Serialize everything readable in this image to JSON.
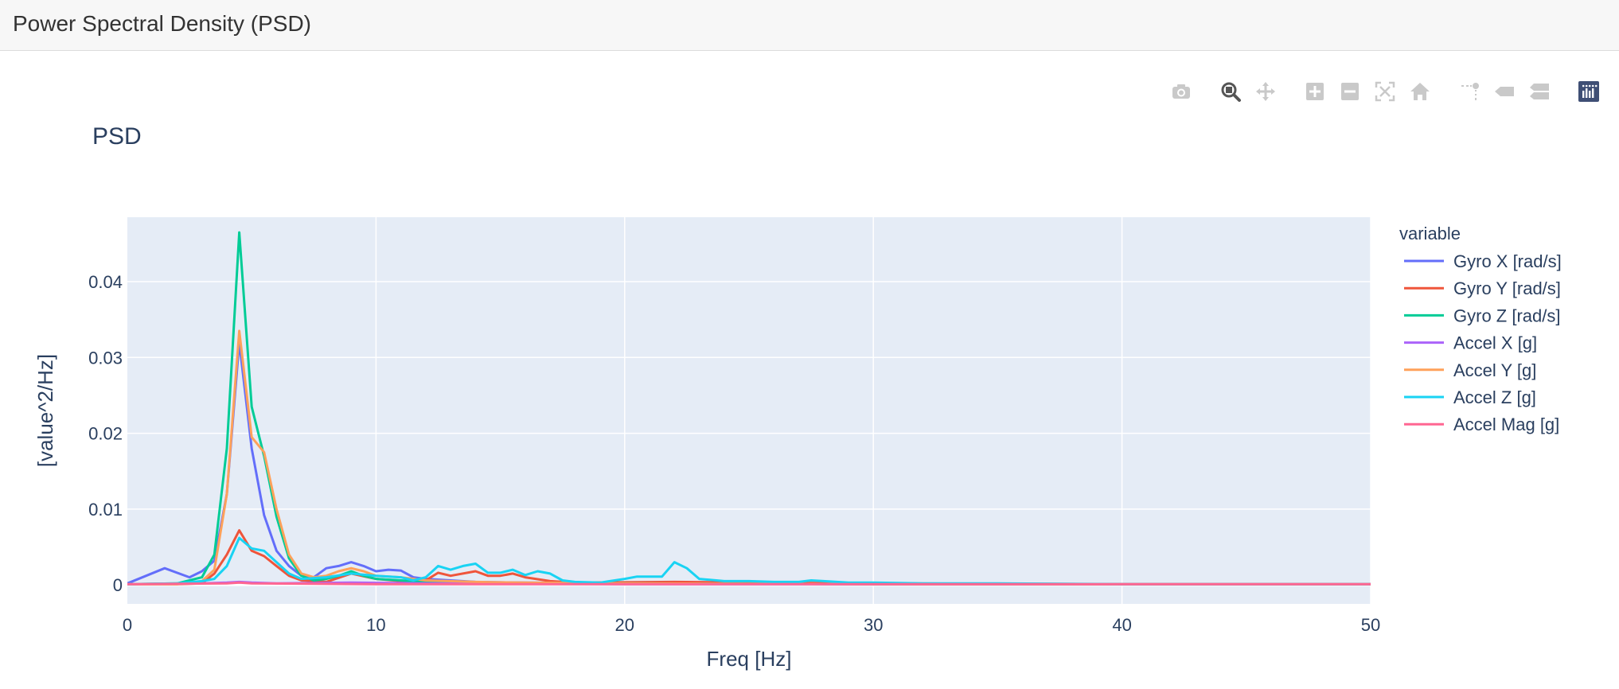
{
  "app": {
    "title": "Power Spectral Density (PSD)"
  },
  "modebar": {
    "buttons": [
      {
        "name": "camera-icon",
        "active": false
      },
      {
        "name": "zoom-icon",
        "active": true
      },
      {
        "name": "pan-icon",
        "active": false
      },
      {
        "name": "zoom-in-icon",
        "active": false
      },
      {
        "name": "zoom-out-icon",
        "active": false
      },
      {
        "name": "autoscale-icon",
        "active": false
      },
      {
        "name": "home-icon",
        "active": false
      },
      {
        "name": "spike-lines-icon",
        "active": false
      },
      {
        "name": "hover-closest-icon",
        "active": false
      },
      {
        "name": "hover-compare-icon",
        "active": false
      },
      {
        "name": "plotly-logo-icon",
        "active": false
      }
    ],
    "colors": {
      "inactive": "#c9c9c9",
      "active": "#555555",
      "logo": "#3f4f75"
    }
  },
  "chart_data": {
    "type": "line",
    "title": "PSD",
    "xlabel": "Freq [Hz]",
    "ylabel": "[value^2/Hz]",
    "xlim": [
      0,
      50
    ],
    "ylim": [
      -0.0025,
      0.0485
    ],
    "xticks": [
      0,
      10,
      20,
      30,
      40,
      50
    ],
    "xtick_labels": [
      "0",
      "10",
      "20",
      "30",
      "40",
      "50"
    ],
    "yticks": [
      0,
      0.01,
      0.02,
      0.03,
      0.04
    ],
    "ytick_labels": [
      "0",
      "0.01",
      "0.02",
      "0.03",
      "0.04"
    ],
    "grid": true,
    "legend_title": "variable",
    "legend_position": "right",
    "series": [
      {
        "name": "Gyro X [rad/s]",
        "color": "#636efa",
        "points": [
          [
            0,
            0.0002
          ],
          [
            1.5,
            0.0022
          ],
          [
            2.5,
            0.001
          ],
          [
            3.0,
            0.0018
          ],
          [
            3.5,
            0.0032
          ],
          [
            4.0,
            0.012
          ],
          [
            4.5,
            0.032
          ],
          [
            5.0,
            0.018
          ],
          [
            5.5,
            0.0092
          ],
          [
            6.0,
            0.0045
          ],
          [
            6.5,
            0.0025
          ],
          [
            7.0,
            0.0012
          ],
          [
            7.5,
            0.001
          ],
          [
            8.0,
            0.0022
          ],
          [
            8.5,
            0.0025
          ],
          [
            9.0,
            0.003
          ],
          [
            9.5,
            0.0025
          ],
          [
            10.0,
            0.0018
          ],
          [
            10.5,
            0.002
          ],
          [
            11.0,
            0.0019
          ],
          [
            11.5,
            0.001
          ],
          [
            12.0,
            0.0008
          ],
          [
            13.0,
            0.0006
          ],
          [
            14.0,
            0.0004
          ],
          [
            16.0,
            0.0003
          ],
          [
            20.0,
            0.0002
          ],
          [
            30.0,
            0.0001
          ],
          [
            40.0,
            0.0001
          ],
          [
            50.0,
            0.0001
          ]
        ]
      },
      {
        "name": "Gyro Y [rad/s]",
        "color": "#ef553b",
        "points": [
          [
            0,
            0.0001
          ],
          [
            2.0,
            0.0001
          ],
          [
            3.0,
            0.0002
          ],
          [
            3.5,
            0.0015
          ],
          [
            4.0,
            0.004
          ],
          [
            4.5,
            0.0072
          ],
          [
            5.0,
            0.0045
          ],
          [
            5.5,
            0.0038
          ],
          [
            6.0,
            0.0025
          ],
          [
            6.5,
            0.0012
          ],
          [
            7.0,
            0.0006
          ],
          [
            8.0,
            0.0004
          ],
          [
            9.0,
            0.0015
          ],
          [
            10.0,
            0.0008
          ],
          [
            11.0,
            0.0005
          ],
          [
            12.0,
            0.0006
          ],
          [
            12.5,
            0.0016
          ],
          [
            13.0,
            0.0012
          ],
          [
            14.0,
            0.0018
          ],
          [
            14.5,
            0.0012
          ],
          [
            15.0,
            0.0012
          ],
          [
            15.5,
            0.0015
          ],
          [
            16.0,
            0.001
          ],
          [
            17.0,
            0.0005
          ],
          [
            18.0,
            0.0003
          ],
          [
            22.0,
            0.0004
          ],
          [
            30.0,
            0.0002
          ],
          [
            40.0,
            0.0001
          ],
          [
            50.0,
            0.0001
          ]
        ]
      },
      {
        "name": "Gyro Z [rad/s]",
        "color": "#00cc96",
        "points": [
          [
            0,
            0.0001
          ],
          [
            2.0,
            0.0002
          ],
          [
            3.0,
            0.001
          ],
          [
            3.5,
            0.004
          ],
          [
            4.0,
            0.018
          ],
          [
            4.5,
            0.0465
          ],
          [
            5.0,
            0.0235
          ],
          [
            5.5,
            0.017
          ],
          [
            6.0,
            0.009
          ],
          [
            6.5,
            0.0035
          ],
          [
            7.0,
            0.0012
          ],
          [
            7.5,
            0.0006
          ],
          [
            8.0,
            0.0008
          ],
          [
            8.5,
            0.0012
          ],
          [
            9.0,
            0.0018
          ],
          [
            9.5,
            0.0012
          ],
          [
            10.0,
            0.0008
          ],
          [
            11.0,
            0.0006
          ],
          [
            12.0,
            0.0004
          ],
          [
            14.0,
            0.0003
          ],
          [
            20.0,
            0.0002
          ],
          [
            30.0,
            0.0001
          ],
          [
            50.0,
            0.0001
          ]
        ]
      },
      {
        "name": "Accel X [g]",
        "color": "#ab63fa",
        "points": [
          [
            0,
            0.0001
          ],
          [
            3.0,
            0.0002
          ],
          [
            4.0,
            0.0003
          ],
          [
            4.5,
            0.0004
          ],
          [
            5.0,
            0.0003
          ],
          [
            6.0,
            0.0002
          ],
          [
            9.0,
            0.0003
          ],
          [
            12.0,
            0.0002
          ],
          [
            20.0,
            0.0001
          ],
          [
            50.0,
            0.0001
          ]
        ]
      },
      {
        "name": "Accel Y [g]",
        "color": "#ffa15a",
        "points": [
          [
            0,
            0.0001
          ],
          [
            2.0,
            0.0001
          ],
          [
            3.0,
            0.0005
          ],
          [
            3.5,
            0.002
          ],
          [
            4.0,
            0.012
          ],
          [
            4.5,
            0.0335
          ],
          [
            5.0,
            0.0195
          ],
          [
            5.5,
            0.0175
          ],
          [
            6.0,
            0.01
          ],
          [
            6.5,
            0.004
          ],
          [
            7.0,
            0.0015
          ],
          [
            7.5,
            0.001
          ],
          [
            8.0,
            0.0012
          ],
          [
            8.5,
            0.0018
          ],
          [
            9.0,
            0.0022
          ],
          [
            9.5,
            0.0018
          ],
          [
            10.0,
            0.0012
          ],
          [
            11.0,
            0.001
          ],
          [
            12.0,
            0.0006
          ],
          [
            14.0,
            0.0004
          ],
          [
            16.0,
            0.0003
          ],
          [
            20.0,
            0.0002
          ],
          [
            30.0,
            0.0001
          ],
          [
            50.0,
            0.0001
          ]
        ]
      },
      {
        "name": "Accel Z [g]",
        "color": "#19d3f3",
        "points": [
          [
            0,
            0.0001
          ],
          [
            2.0,
            0.0002
          ],
          [
            3.0,
            0.0005
          ],
          [
            3.5,
            0.0008
          ],
          [
            4.0,
            0.0025
          ],
          [
            4.5,
            0.0062
          ],
          [
            5.0,
            0.0048
          ],
          [
            5.5,
            0.0045
          ],
          [
            6.0,
            0.003
          ],
          [
            6.5,
            0.0015
          ],
          [
            7.0,
            0.0008
          ],
          [
            8.0,
            0.001
          ],
          [
            9.0,
            0.0015
          ],
          [
            10.0,
            0.0012
          ],
          [
            11.0,
            0.001
          ],
          [
            11.5,
            0.0006
          ],
          [
            12.0,
            0.001
          ],
          [
            12.5,
            0.0025
          ],
          [
            13.0,
            0.002
          ],
          [
            13.5,
            0.0025
          ],
          [
            14.0,
            0.0028
          ],
          [
            14.5,
            0.0016
          ],
          [
            15.0,
            0.0016
          ],
          [
            15.5,
            0.002
          ],
          [
            16.0,
            0.0013
          ],
          [
            16.5,
            0.0018
          ],
          [
            17.0,
            0.0015
          ],
          [
            17.5,
            0.0006
          ],
          [
            18.0,
            0.0004
          ],
          [
            19.0,
            0.0003
          ],
          [
            20.0,
            0.0008
          ],
          [
            20.5,
            0.0011
          ],
          [
            21.5,
            0.0011
          ],
          [
            22.0,
            0.003
          ],
          [
            22.5,
            0.0022
          ],
          [
            23.0,
            0.0008
          ],
          [
            24.0,
            0.0005
          ],
          [
            25.0,
            0.0005
          ],
          [
            26.0,
            0.0004
          ],
          [
            27.0,
            0.0004
          ],
          [
            27.5,
            0.0006
          ],
          [
            28.0,
            0.0005
          ],
          [
            29.0,
            0.0003
          ],
          [
            30.0,
            0.0003
          ],
          [
            32.0,
            0.0002
          ],
          [
            35.0,
            0.0002
          ],
          [
            40.0,
            0.0001
          ],
          [
            50.0,
            0.0001
          ]
        ]
      },
      {
        "name": "Accel Mag [g]",
        "color": "#ff6692",
        "points": [
          [
            0,
            0.0001
          ],
          [
            4.0,
            0.0002
          ],
          [
            4.5,
            0.0003
          ],
          [
            5.0,
            0.0002
          ],
          [
            10.0,
            0.0001
          ],
          [
            20.0,
            0.0001
          ],
          [
            50.0,
            0.0001
          ]
        ]
      }
    ]
  }
}
